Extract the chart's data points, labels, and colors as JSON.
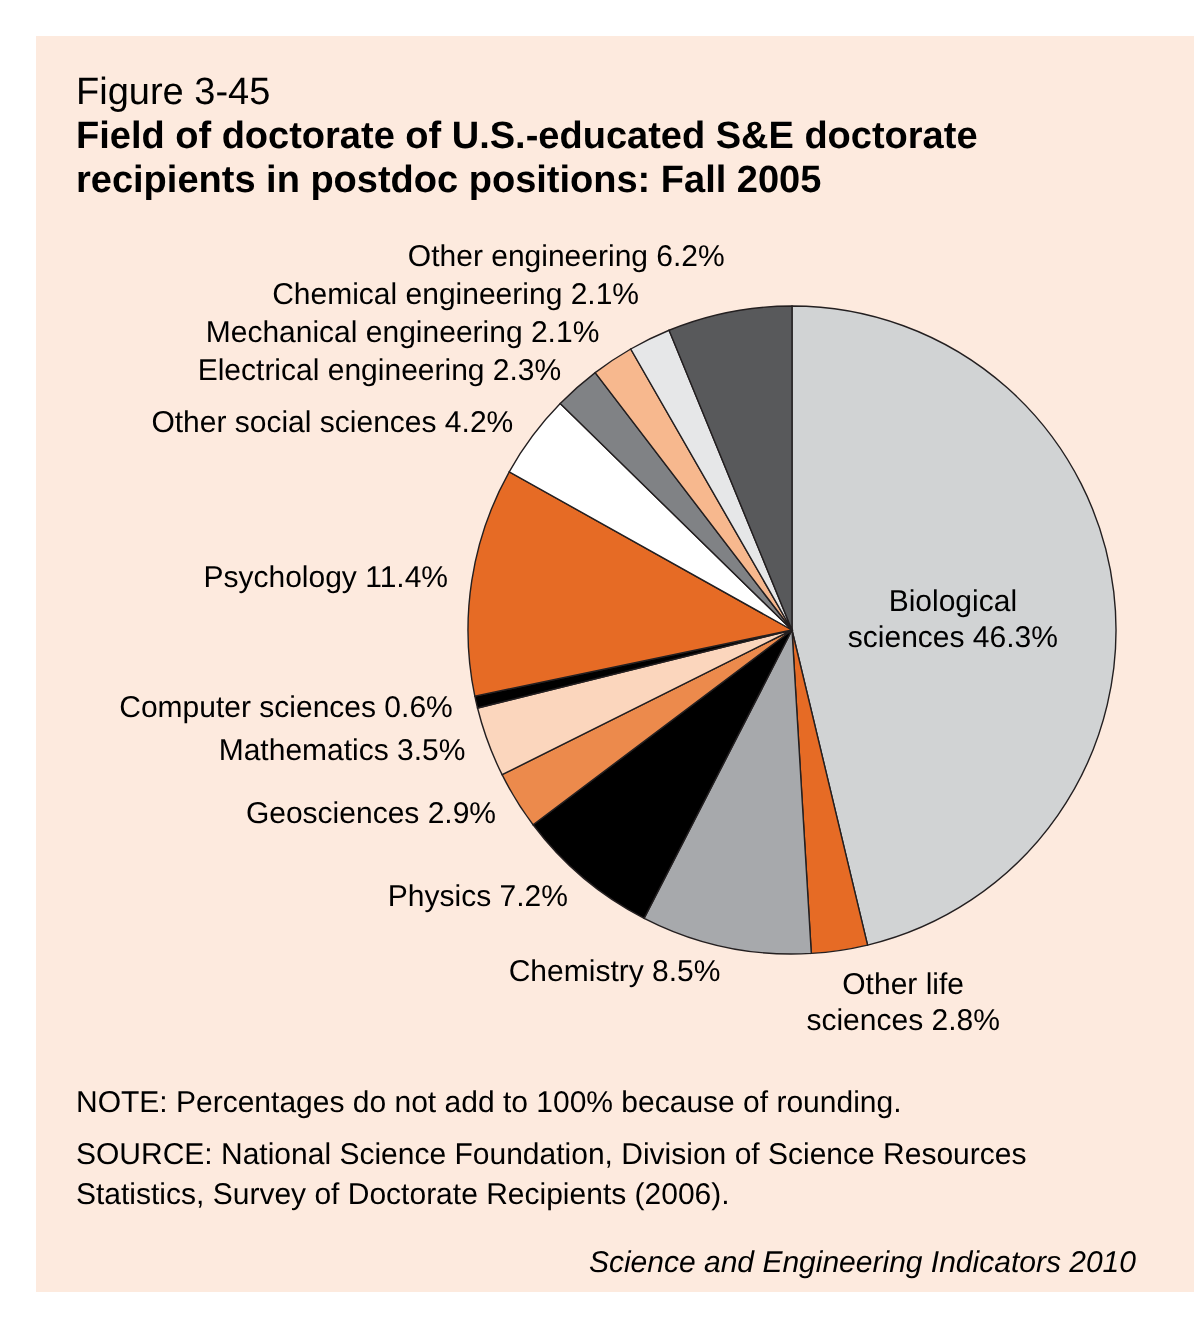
{
  "chart_data": {
    "type": "pie",
    "subtitle": "Figure 3-45",
    "title": "Field of doctorate of U.S.-educated S&E doctorate recipients in postdoc positions: Fall 2005",
    "categories": [
      "Biological sciences",
      "Other life sciences",
      "Chemistry",
      "Physics",
      "Geosciences",
      "Mathematics",
      "Computer sciences",
      "Psychology",
      "Other social sciences",
      "Electrical engineering",
      "Mechanical engineering",
      "Chemical engineering",
      "Other engineering"
    ],
    "values": [
      46.3,
      2.8,
      8.5,
      7.2,
      2.9,
      3.5,
      0.6,
      11.4,
      4.2,
      2.3,
      2.1,
      2.1,
      6.2
    ],
    "colors": [
      "#d1d3d4",
      "#e66b25",
      "#a7a9ac",
      "#000000",
      "#ec8a4c",
      "#fbd6bd",
      "#000000",
      "#e66b25",
      "#ffffff",
      "#808285",
      "#f7b88e",
      "#e6e7e8",
      "#58595b"
    ],
    "value_labels": [
      "46.3%",
      "2.8%",
      "8.5%",
      "7.2%",
      "2.9%",
      "3.5%",
      "0.6%",
      "11.4%",
      "4.2%",
      "2.3%",
      "2.1%",
      "2.1%",
      "6.2%"
    ],
    "annotations": [
      "NOTE: Percentages do not add to 100% because of rounding.",
      "SOURCE: National Science Foundation, Division of Science Resources Statistics, Survey of Doctorate Recipients (2006).",
      "Science and Engineering Indicators 2010"
    ]
  }
}
